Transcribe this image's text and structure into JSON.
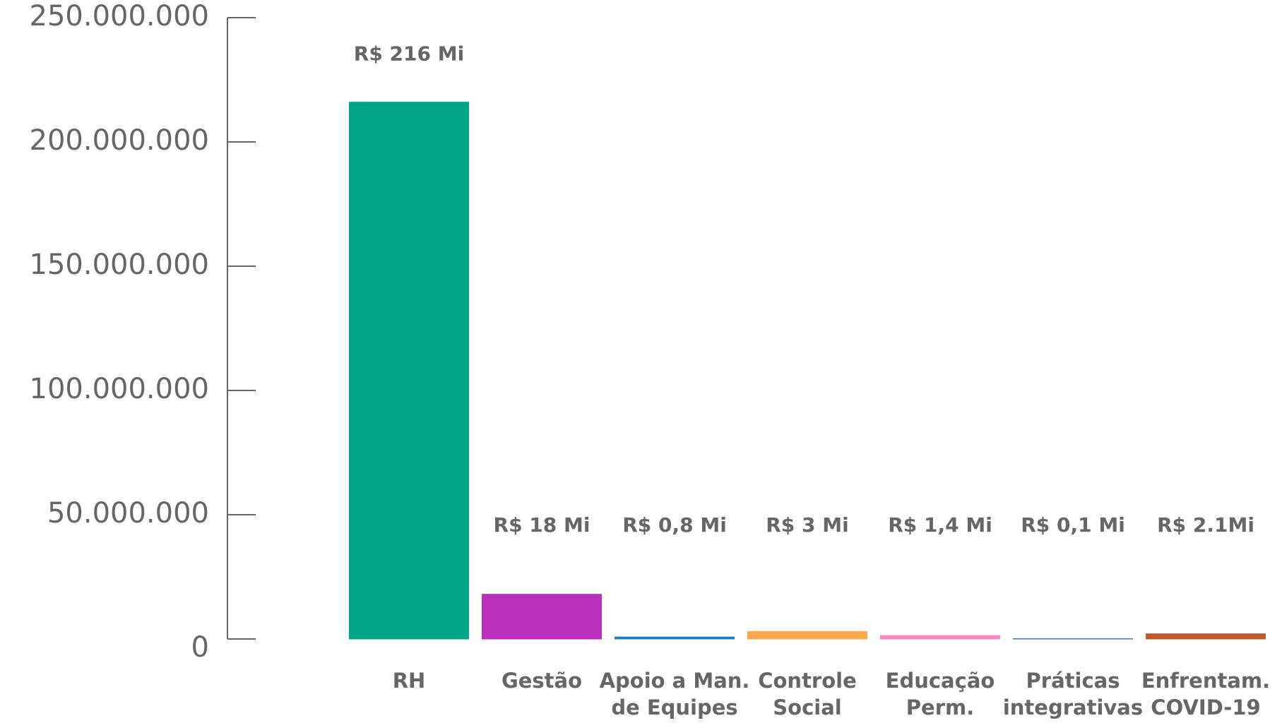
{
  "chart_data": {
    "type": "bar",
    "categories": [
      "RH",
      "Gestão",
      "Apoio a Man.\nde Equipes",
      "Controle\nSocial",
      "Educação\nPerm.",
      "Práticas\nintegrativas",
      "Enfrentam.\nCOVID-19"
    ],
    "values": [
      216000000,
      18000000,
      800000,
      3000000,
      1400000,
      100000,
      2100000
    ],
    "value_labels": [
      "R$ 216 Mi",
      "R$ 18 Mi",
      "R$ 0,8 Mi",
      "R$ 3 Mi",
      "R$ 1,4 Mi",
      "R$ 0,1 Mi",
      "R$ 2.1Mi"
    ],
    "colors": [
      "#00a78a",
      "#bb30b8",
      "#1f7fc0",
      "#fca84e",
      "#f58ac0",
      "#3b5bc0",
      "#c05a28"
    ],
    "ylim": [
      0,
      250000000
    ],
    "yticks": [
      0,
      {
        "value": 50000000,
        "label": "50.000.000"
      },
      {
        "value": 100000000,
        "label": "100.000.000"
      },
      {
        "value": 150000000,
        "label": "150.000.000"
      },
      {
        "value": 200000000,
        "label": "200.000.000"
      },
      {
        "value": 250000000,
        "label": "250.000.000"
      }
    ],
    "grid": false
  }
}
